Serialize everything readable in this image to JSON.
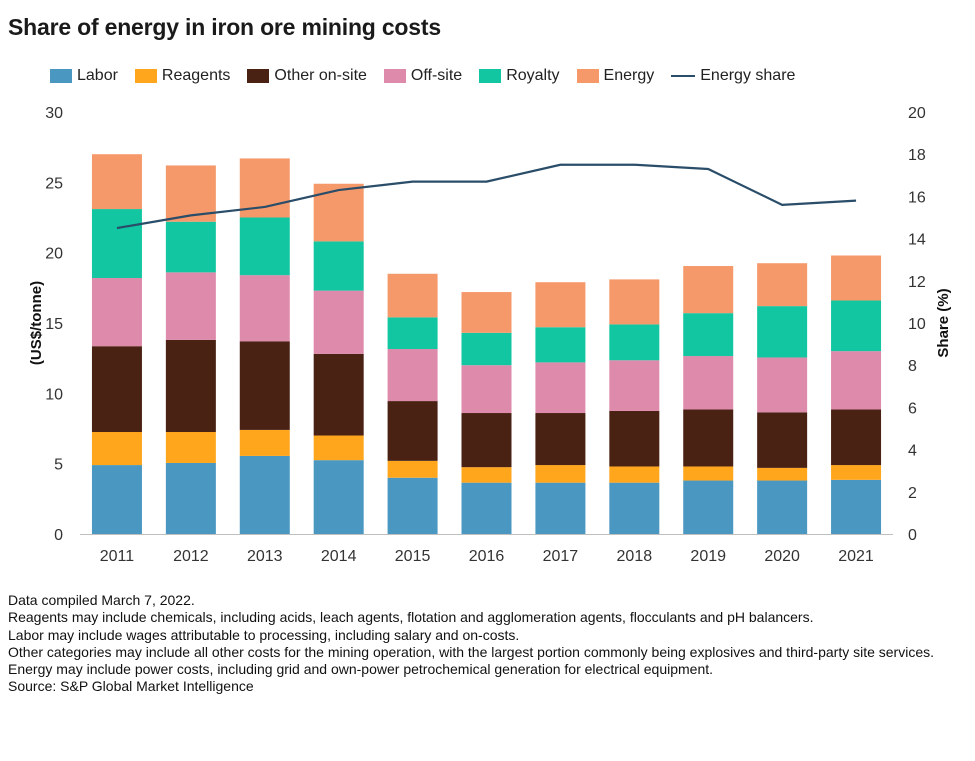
{
  "title": "Share of energy in iron ore mining costs",
  "chart_data": {
    "type": "bar",
    "stacked": true,
    "title": "Share of energy in iron ore mining costs",
    "categories": [
      "2011",
      "2012",
      "2013",
      "2014",
      "2015",
      "2016",
      "2017",
      "2018",
      "2019",
      "2020",
      "2021"
    ],
    "series": [
      {
        "name": "Labor",
        "color": "#4a97c2",
        "values": [
          4.9,
          5.05,
          5.55,
          5.25,
          4.0,
          3.65,
          3.65,
          3.65,
          3.8,
          3.8,
          3.85
        ]
      },
      {
        "name": "Reagents",
        "color": "#ffa61c",
        "values": [
          2.35,
          2.2,
          1.85,
          1.75,
          1.2,
          1.1,
          1.25,
          1.15,
          1.0,
          0.9,
          1.05
        ]
      },
      {
        "name": "Other on-site",
        "color": "#4a2214",
        "values": [
          6.1,
          6.55,
          6.3,
          5.8,
          4.25,
          3.85,
          3.7,
          3.95,
          4.05,
          3.95,
          3.95
        ]
      },
      {
        "name": "Off-site",
        "color": "#de8aab",
        "values": [
          4.85,
          4.8,
          4.7,
          4.5,
          3.7,
          3.4,
          3.6,
          3.6,
          3.8,
          3.9,
          4.15
        ]
      },
      {
        "name": "Royalty",
        "color": "#12c6a2",
        "values": [
          4.9,
          3.6,
          4.1,
          3.5,
          2.25,
          2.3,
          2.5,
          2.55,
          3.05,
          3.65,
          3.6
        ]
      },
      {
        "name": "Energy",
        "color": "#f5996a",
        "values": [
          3.9,
          4.0,
          4.2,
          4.1,
          3.1,
          2.9,
          3.2,
          3.2,
          3.35,
          3.05,
          3.2
        ]
      }
    ],
    "line_series": {
      "name": "Energy share",
      "color": "#2a4d69",
      "axis": "right",
      "values": [
        14.5,
        15.1,
        15.5,
        16.3,
        16.7,
        16.7,
        17.5,
        17.5,
        17.3,
        15.6,
        15.8
      ]
    },
    "xlabel": "",
    "ylabel": "(US$/tonne)",
    "y2label": "Share (%)",
    "ylim": [
      0,
      30
    ],
    "y2lim": [
      0,
      20
    ],
    "yticks": [
      "0",
      "5",
      "10",
      "15",
      "20",
      "25",
      "30"
    ],
    "y2ticks": [
      "0",
      "2",
      "4",
      "6",
      "8",
      "10",
      "12",
      "14",
      "16",
      "18",
      "20"
    ],
    "grid": false,
    "legend_position": "top"
  },
  "legend": [
    {
      "label": "Labor",
      "color": "#4a97c2",
      "kind": "swatch"
    },
    {
      "label": "Reagents",
      "color": "#ffa61c",
      "kind": "swatch"
    },
    {
      "label": "Other on-site",
      "color": "#4a2214",
      "kind": "swatch"
    },
    {
      "label": "Off-site",
      "color": "#de8aab",
      "kind": "swatch"
    },
    {
      "label": "Royalty",
      "color": "#12c6a2",
      "kind": "swatch"
    },
    {
      "label": "Energy",
      "color": "#f5996a",
      "kind": "swatch"
    },
    {
      "label": "Energy share",
      "color": "#2a4d69",
      "kind": "line"
    }
  ],
  "notes": [
    "Data compiled March 7, 2022.",
    "Reagents may include chemicals, including acids, leach agents, flotation and agglomeration agents, flocculants and pH balancers.",
    "Labor may include wages attributable to processing, including salary and on-costs.",
    "Other categories may include all other costs for the mining operation, with the largest portion commonly being explosives and third-party site services.",
    "Energy may include power costs, including grid and own-power petrochemical generation for electrical equipment.",
    "Source: S&P Global Market Intelligence"
  ]
}
